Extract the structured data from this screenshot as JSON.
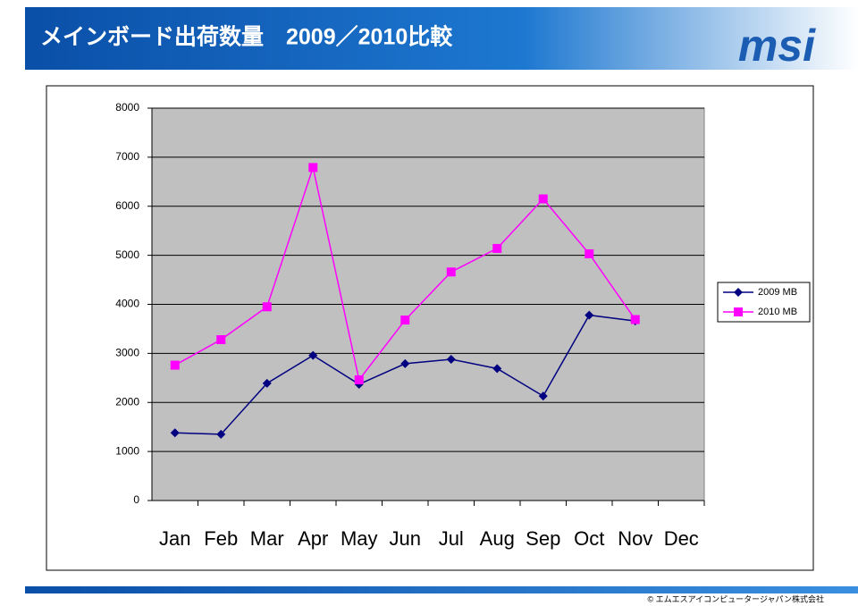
{
  "header": {
    "title": "メインボード出荷数量　2009／2010比較",
    "logo": "msi"
  },
  "footer": {
    "copyright": "© エムエスアイコンピュータージャパン株式会社"
  },
  "chart_data": {
    "type": "line",
    "categories": [
      "Jan",
      "Feb",
      "Mar",
      "Apr",
      "May",
      "Jun",
      "Jul",
      "Aug",
      "Sep",
      "Oct",
      "Nov",
      "Dec"
    ],
    "series": [
      {
        "name": "2009 MB",
        "color": "#000080",
        "marker": "diamond",
        "values": [
          1380,
          1350,
          2390,
          2960,
          2370,
          2790,
          2880,
          2690,
          2130,
          3780,
          3660,
          null
        ]
      },
      {
        "name": "2010 MB",
        "color": "#ff00ff",
        "marker": "square",
        "values": [
          2760,
          3280,
          3950,
          6790,
          2460,
          3680,
          4660,
          5140,
          6150,
          5030,
          3690,
          null
        ]
      }
    ],
    "ylim": [
      0,
      8000
    ],
    "yticks": [
      0,
      1000,
      2000,
      3000,
      4000,
      5000,
      6000,
      7000,
      8000
    ],
    "grid": true,
    "legend": "right"
  }
}
